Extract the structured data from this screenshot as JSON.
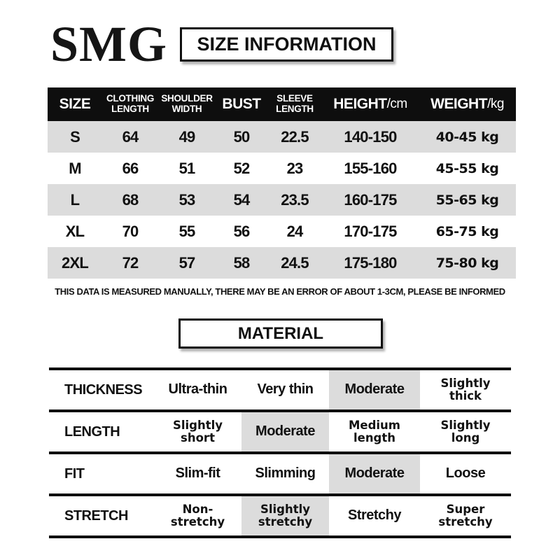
{
  "brand": {
    "logo_text": "SMG"
  },
  "titles": {
    "size_information": "SIZE INFORMATION",
    "material": "MATERIAL"
  },
  "colors": {
    "header_bg": "#0e0e0e",
    "row_shade": "#dcdcdc",
    "highlight": "#dcdcdc",
    "text": "#111111",
    "background": "#ffffff"
  },
  "size_table": {
    "headers": [
      {
        "label": "SIZE"
      },
      {
        "label": "CLOTHING\nLENGTH"
      },
      {
        "label": "SHOULDER\nWIDTH"
      },
      {
        "label": "BUST"
      },
      {
        "label": "SLEEVE\nLENGTH"
      },
      {
        "label": "HEIGHT",
        "unit": "/cm"
      },
      {
        "label": "WEIGHT",
        "unit": "/kg"
      }
    ],
    "rows": [
      [
        "S",
        "64",
        "49",
        "50",
        "22.5",
        "140-150",
        "40-45 kg"
      ],
      [
        "M",
        "66",
        "51",
        "52",
        "23",
        "155-160",
        "45-55 kg"
      ],
      [
        "L",
        "68",
        "53",
        "54",
        "23.5",
        "160-175",
        "55-65 kg"
      ],
      [
        "XL",
        "70",
        "55",
        "56",
        "24",
        "170-175",
        "65-75 kg"
      ],
      [
        "2XL",
        "72",
        "57",
        "58",
        "24.5",
        "175-180",
        "75-80 kg"
      ]
    ],
    "note": "THIS DATA IS MEASURED MANUALLY, THERE MAY BE AN ERROR OF ABOUT 1-3CM, PLEASE BE INFORMED"
  },
  "material_table": {
    "rows": [
      {
        "label": "THICKNESS",
        "selected": 2,
        "options": [
          {
            "text": "Ultra-thin"
          },
          {
            "text": "Very thin"
          },
          {
            "text": "Moderate"
          },
          {
            "text": "Slightly\nthick",
            "wide": true
          }
        ]
      },
      {
        "label": "LENGTH",
        "selected": 1,
        "options": [
          {
            "text": "Slightly\nshort",
            "wide": true
          },
          {
            "text": "Moderate"
          },
          {
            "text": "Medium\nlength",
            "wide": true
          },
          {
            "text": "Slightly\nlong",
            "wide": true
          }
        ]
      },
      {
        "label": "FIT",
        "selected": 2,
        "options": [
          {
            "text": "Slim-fit"
          },
          {
            "text": "Slimming"
          },
          {
            "text": "Moderate"
          },
          {
            "text": "Loose"
          }
        ]
      },
      {
        "label": "STRETCH",
        "selected": 1,
        "options": [
          {
            "text": "Non-\nstretchy",
            "wide": true
          },
          {
            "text": "Slightly\nstretchy",
            "wide": true
          },
          {
            "text": "Stretchy"
          },
          {
            "text": "Super\nstretchy",
            "wide": true
          }
        ]
      }
    ]
  }
}
